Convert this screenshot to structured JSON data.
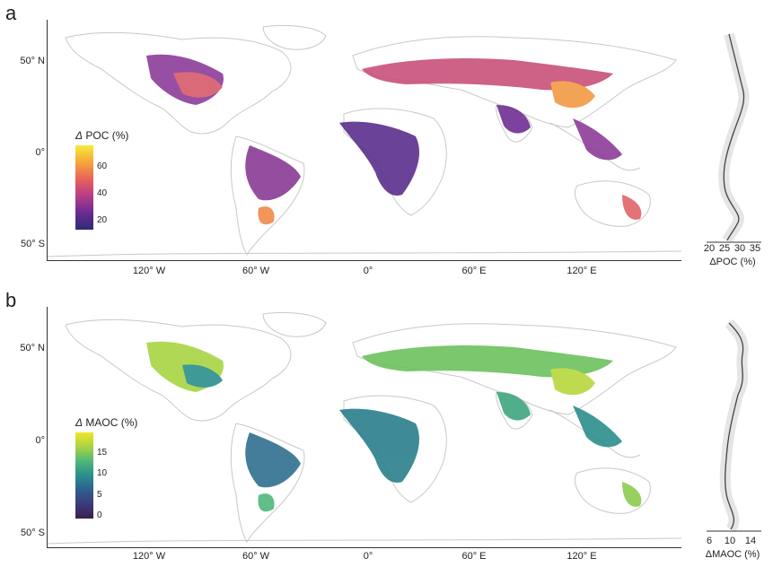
{
  "panels": [
    {
      "letter": "a",
      "lat_labels": [
        "50° N",
        "0°",
        "50° S"
      ],
      "lon_labels": [
        "120° W",
        "60° W",
        "0°",
        "60° E",
        "120° E"
      ],
      "legend": {
        "title_symbol": "Δ",
        "title_text": " POC (%)",
        "ticks": [
          "60",
          "40",
          "20"
        ],
        "colors": [
          "#f5ec3a",
          "#f7a63a",
          "#e8625a",
          "#b73d8a",
          "#6a2c91",
          "#2e2a78"
        ]
      },
      "side": {
        "ticks": [
          "20",
          "25",
          "30",
          "35"
        ],
        "title": "ΔPOC (%)"
      }
    },
    {
      "letter": "b",
      "lat_labels": [
        "50° N",
        "0°",
        "50° S"
      ],
      "lon_labels": [
        "120° W",
        "60° W",
        "0°",
        "60° E",
        "120° E"
      ],
      "legend": {
        "title_symbol": "Δ",
        "title_text": " MAOC (%)",
        "ticks": [
          "15",
          "10",
          "5",
          "0"
        ],
        "colors": [
          "#f2e52a",
          "#a8d443",
          "#4fb779",
          "#2a8e8c",
          "#2f5f8f",
          "#3b3a7a",
          "#3c1e4e"
        ]
      },
      "side": {
        "ticks": [
          "6",
          "10",
          "14"
        ],
        "title": "ΔMAOC (%)"
      }
    }
  ]
}
